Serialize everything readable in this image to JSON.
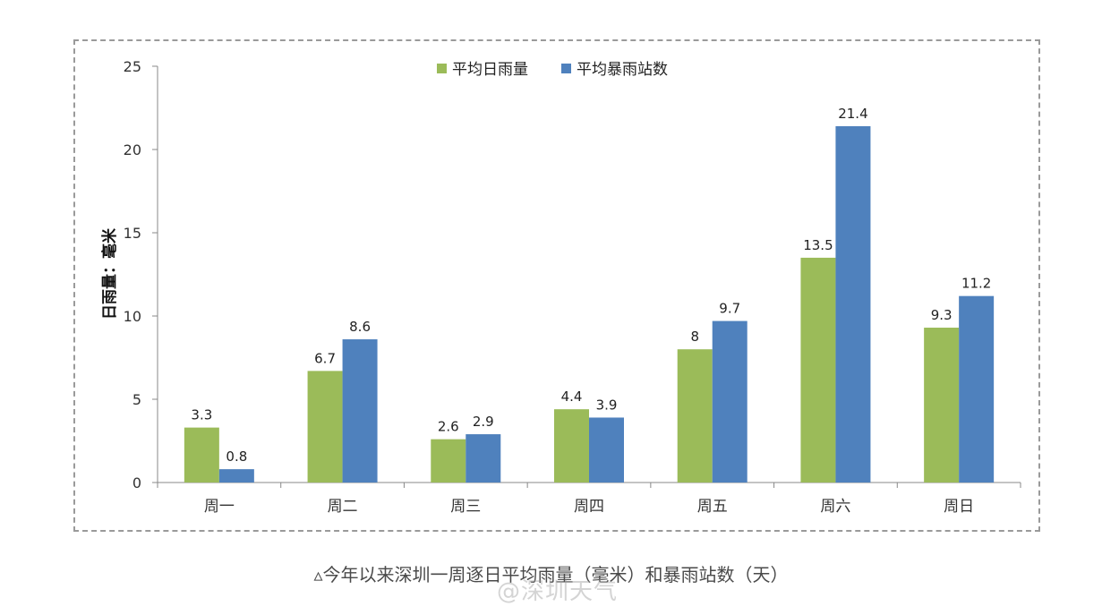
{
  "chart_data": {
    "type": "bar",
    "ylabel": "日雨量：毫米",
    "ylim": [
      0,
      25
    ],
    "yticks": [
      0,
      5,
      10,
      15,
      20,
      25
    ],
    "categories": [
      "周一",
      "周二",
      "周三",
      "周四",
      "周五",
      "周六",
      "周日"
    ],
    "series": [
      {
        "name": "平均日雨量",
        "color": "#9bbb59",
        "values": [
          3.3,
          6.7,
          2.6,
          4.4,
          8,
          13.5,
          9.3
        ]
      },
      {
        "name": "平均暴雨站数",
        "color": "#4f81bd",
        "values": [
          0.8,
          8.6,
          2.9,
          3.9,
          9.7,
          21.4,
          11.2
        ]
      }
    ],
    "legend_position": "top-center",
    "grid": false,
    "data_labels": true
  },
  "caption": "▵今年以来深圳一周逐日平均雨量（毫米）和暴雨站数（天）",
  "watermark": "@深圳天气"
}
